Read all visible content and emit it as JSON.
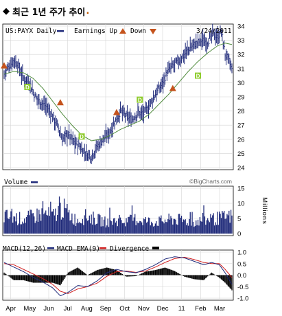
{
  "heading": {
    "bullet": "◆",
    "text": "최근 1년 주가 추이",
    "dot": "."
  },
  "colors": {
    "price": "#1f2a7a",
    "ma": "#4f8a3c",
    "volume": "#1f2a7a",
    "macd": "#1f2a7a",
    "ema": "#d02020",
    "divergence": "#000000",
    "earn_up": "#c5531c",
    "div_marker": "#8fcc2e",
    "grid": "#d5d5d5"
  },
  "chart_data": [
    {
      "type": "line",
      "name": "price",
      "ticker_label": "US:PAYX Daily",
      "legend": {
        "earnings_up": "Earnings Up",
        "down": "Down"
      },
      "date_label": "3/24/2011",
      "ylim": [
        24,
        34
      ],
      "yticks": [
        24,
        25,
        26,
        27,
        28,
        29,
        30,
        31,
        32,
        33,
        34
      ],
      "x_months": [
        "Apr",
        "May",
        "Jun",
        "Jul",
        "Aug",
        "Sep",
        "Oct",
        "Nov",
        "Dec",
        "11",
        "Feb",
        "Mar"
      ],
      "price_keypoints": [
        [
          0,
          30.6
        ],
        [
          5,
          31.2
        ],
        [
          10,
          31.6
        ],
        [
          14,
          31.3
        ],
        [
          20,
          30.3
        ],
        [
          26,
          30.0
        ],
        [
          32,
          29.0
        ],
        [
          38,
          28.6
        ],
        [
          44,
          28.3
        ],
        [
          50,
          27.6
        ],
        [
          56,
          26.8
        ],
        [
          60,
          26.0
        ],
        [
          66,
          26.4
        ],
        [
          72,
          25.8
        ],
        [
          78,
          25.5
        ],
        [
          84,
          25.0
        ],
        [
          90,
          24.8
        ],
        [
          96,
          25.5
        ],
        [
          102,
          26.0
        ],
        [
          108,
          26.4
        ],
        [
          114,
          27.2
        ],
        [
          120,
          28.0
        ],
        [
          126,
          27.6
        ],
        [
          132,
          27.4
        ],
        [
          138,
          27.9
        ],
        [
          144,
          27.8
        ],
        [
          150,
          28.4
        ],
        [
          156,
          29.2
        ],
        [
          162,
          29.8
        ],
        [
          168,
          30.7
        ],
        [
          174,
          31.2
        ],
        [
          180,
          31.5
        ],
        [
          186,
          32.0
        ],
        [
          192,
          32.5
        ],
        [
          198,
          32.8
        ],
        [
          204,
          33.0
        ],
        [
          210,
          32.9
        ],
        [
          216,
          33.5
        ],
        [
          220,
          33.2
        ],
        [
          224,
          33.6
        ],
        [
          228,
          32.0
        ],
        [
          232,
          31.5
        ],
        [
          235,
          30.9
        ]
      ],
      "ma_keypoints": [
        [
          0,
          30.6
        ],
        [
          10,
          30.8
        ],
        [
          20,
          30.7
        ],
        [
          30,
          30.3
        ],
        [
          40,
          29.6
        ],
        [
          50,
          28.7
        ],
        [
          60,
          27.8
        ],
        [
          70,
          27.0
        ],
        [
          80,
          26.3
        ],
        [
          90,
          25.9
        ],
        [
          100,
          26.0
        ],
        [
          110,
          26.3
        ],
        [
          120,
          26.7
        ],
        [
          130,
          27.0
        ],
        [
          140,
          27.3
        ],
        [
          150,
          27.8
        ],
        [
          160,
          28.5
        ],
        [
          170,
          29.2
        ],
        [
          180,
          30.0
        ],
        [
          190,
          30.8
        ],
        [
          200,
          31.5
        ],
        [
          210,
          32.1
        ],
        [
          220,
          32.6
        ],
        [
          228,
          32.8
        ],
        [
          235,
          32.7
        ]
      ],
      "earnings_markers": [
        {
          "i": 0,
          "y": 31.2
        },
        {
          "i": 58,
          "y": 28.6
        },
        {
          "i": 116,
          "y": 27.9
        },
        {
          "i": 174,
          "y": 29.6
        }
      ],
      "dividend_markers": [
        {
          "i": 24,
          "y": 29.7
        },
        {
          "i": 80,
          "y": 26.2
        },
        {
          "i": 140,
          "y": 28.8
        },
        {
          "i": 200,
          "y": 30.5
        }
      ],
      "dividend_label": "D",
      "watermark": "©BigCharts.com"
    },
    {
      "type": "bar",
      "name": "volume",
      "label": "Volume",
      "unit_label": "Millions",
      "ylim": [
        0,
        15
      ],
      "yticks": [
        0,
        5,
        10,
        15
      ],
      "values_keypoints": [
        [
          0,
          6
        ],
        [
          10,
          5.5
        ],
        [
          20,
          5
        ],
        [
          30,
          6
        ],
        [
          40,
          7
        ],
        [
          50,
          6
        ],
        [
          60,
          9
        ],
        [
          66,
          7
        ],
        [
          75,
          4.5
        ],
        [
          85,
          6
        ],
        [
          95,
          5
        ],
        [
          105,
          4
        ],
        [
          115,
          4.5
        ],
        [
          125,
          4
        ],
        [
          135,
          5
        ],
        [
          145,
          4.5
        ],
        [
          155,
          4
        ],
        [
          165,
          4.5
        ],
        [
          175,
          5
        ],
        [
          185,
          4.5
        ],
        [
          195,
          4
        ],
        [
          205,
          4.5
        ],
        [
          215,
          5
        ],
        [
          225,
          5.5
        ],
        [
          235,
          6
        ]
      ]
    },
    {
      "type": "line",
      "name": "macd",
      "label": "MACD(12,26)",
      "ema_label": "MACD EMA(9)",
      "divergence_label": "Divergence",
      "ylim": [
        -1.0,
        1.0
      ],
      "yticks": [
        -1.0,
        -0.5,
        0.0,
        0.5,
        1.0
      ],
      "ytick_labels": [
        "-1.0",
        "-0.5",
        "0.0",
        "0.5",
        "1.0"
      ],
      "macd_keypoints": [
        [
          0,
          0.55
        ],
        [
          10,
          0.35
        ],
        [
          20,
          0.15
        ],
        [
          30,
          -0.1
        ],
        [
          40,
          -0.3
        ],
        [
          50,
          -0.55
        ],
        [
          58,
          -0.9
        ],
        [
          66,
          -0.75
        ],
        [
          76,
          -0.45
        ],
        [
          86,
          -0.5
        ],
        [
          96,
          -0.25
        ],
        [
          106,
          0.1
        ],
        [
          116,
          0.25
        ],
        [
          126,
          0.15
        ],
        [
          136,
          0.1
        ],
        [
          146,
          0.25
        ],
        [
          156,
          0.45
        ],
        [
          166,
          0.7
        ],
        [
          176,
          0.8
        ],
        [
          186,
          0.75
        ],
        [
          196,
          0.6
        ],
        [
          206,
          0.45
        ],
        [
          214,
          0.55
        ],
        [
          222,
          0.45
        ],
        [
          228,
          0.1
        ],
        [
          235,
          -0.4
        ]
      ],
      "ema_keypoints": [
        [
          0,
          0.5
        ],
        [
          10,
          0.45
        ],
        [
          20,
          0.25
        ],
        [
          30,
          0.05
        ],
        [
          40,
          -0.15
        ],
        [
          50,
          -0.4
        ],
        [
          58,
          -0.7
        ],
        [
          66,
          -0.8
        ],
        [
          76,
          -0.6
        ],
        [
          86,
          -0.5
        ],
        [
          96,
          -0.35
        ],
        [
          106,
          -0.05
        ],
        [
          116,
          0.15
        ],
        [
          126,
          0.18
        ],
        [
          136,
          0.12
        ],
        [
          146,
          0.18
        ],
        [
          156,
          0.35
        ],
        [
          166,
          0.55
        ],
        [
          176,
          0.72
        ],
        [
          186,
          0.78
        ],
        [
          196,
          0.68
        ],
        [
          206,
          0.55
        ],
        [
          214,
          0.5
        ],
        [
          222,
          0.5
        ],
        [
          228,
          0.25
        ],
        [
          235,
          -0.1
        ]
      ]
    }
  ]
}
